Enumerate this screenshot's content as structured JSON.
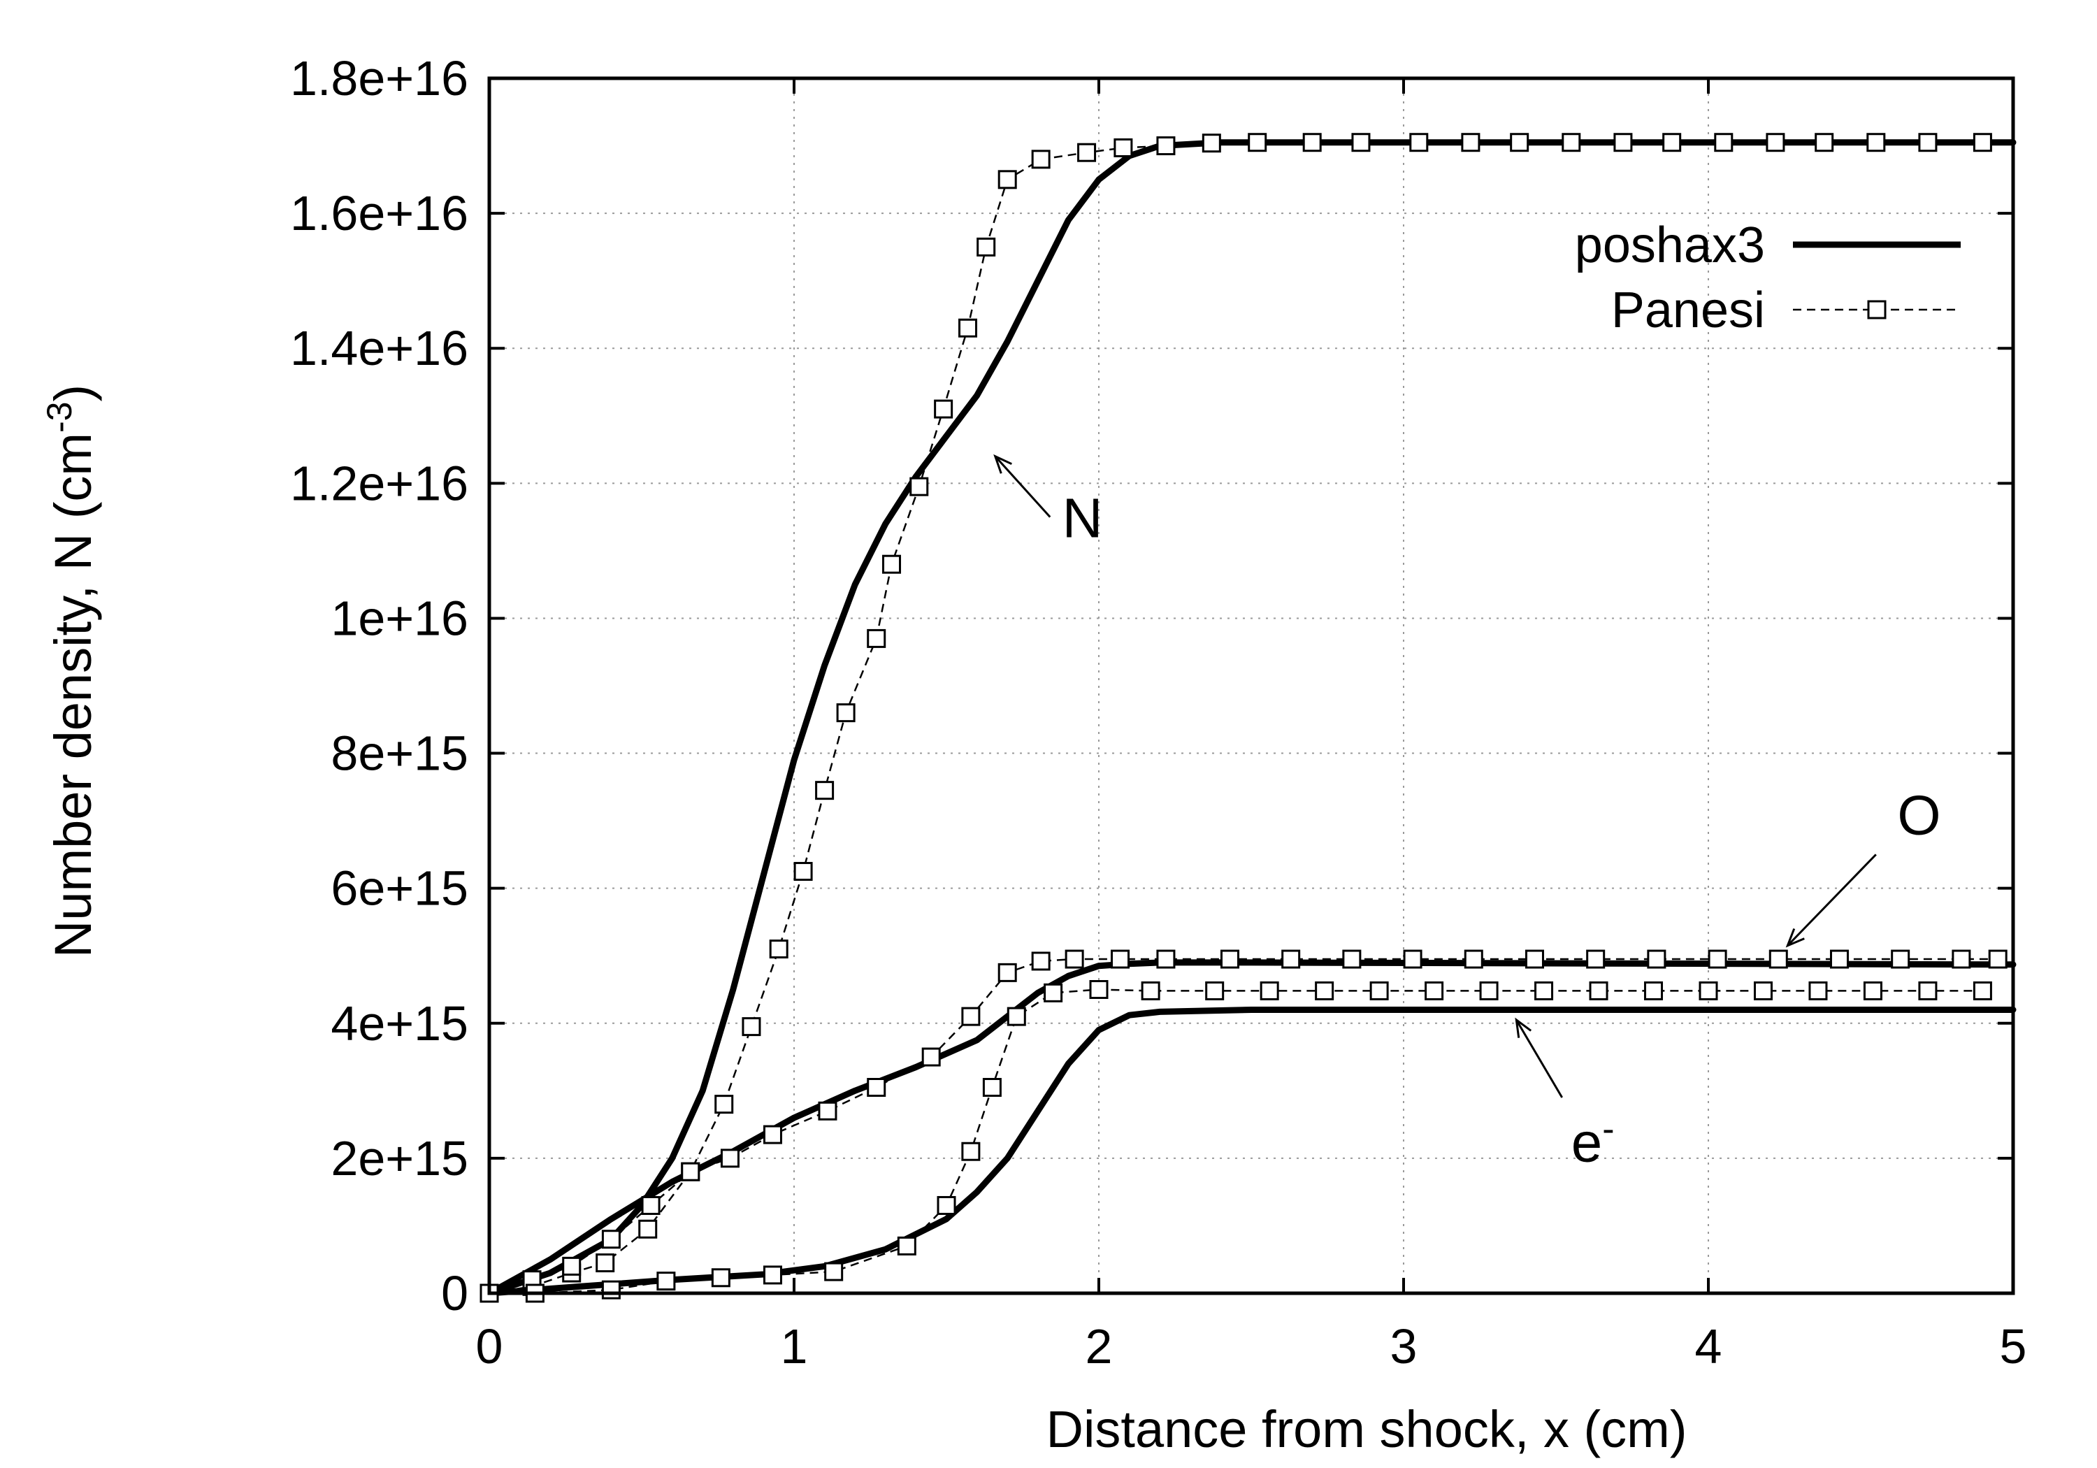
{
  "chart_data": {
    "type": "line",
    "xlabel": "Distance from shock, x (cm)",
    "ylabel": {
      "main": "Number density, N (cm",
      "sup": "-3",
      "close": ")"
    },
    "xlim": [
      0,
      5
    ],
    "ylim": [
      0,
      1.8e+16
    ],
    "xticks": [
      0,
      1,
      2,
      3,
      4,
      5
    ],
    "xtick_labels": [
      "0",
      "1",
      "2",
      "3",
      "4",
      "5"
    ],
    "yticks": [
      0,
      2000000000000000.0,
      4000000000000000.0,
      6000000000000000.0,
      8000000000000000.0,
      1e+16,
      1.2e+16,
      1.4e+16,
      1.6e+16,
      1.8e+16
    ],
    "ytick_labels": [
      "0",
      "2e+15",
      "4e+15",
      "6e+15",
      "8e+15",
      "1e+16",
      "1.2e+16",
      "1.4e+16",
      "1.6e+16",
      "1.8e+16"
    ],
    "grid": true,
    "legend": {
      "position": "top-right",
      "entries": [
        {
          "label": "poshax3",
          "style": "solid"
        },
        {
          "label": "Panesi",
          "style": "dashed-squares"
        }
      ]
    },
    "annotations": [
      {
        "text": "N",
        "sup": "",
        "tip": [
          1.66,
          1.24e+16
        ],
        "tail": [
          1.84,
          1.15e+16
        ],
        "label_at": [
          1.88,
          1.12e+16
        ]
      },
      {
        "text": "O",
        "sup": "",
        "tip": [
          4.26,
          5150000000000000.0
        ],
        "tail": [
          4.55,
          6500000000000000.0
        ],
        "label_at": [
          4.62,
          6800000000000000.0
        ]
      },
      {
        "text": "e",
        "sup": "-",
        "tip": [
          3.37,
          4050000000000000.0
        ],
        "tail": [
          3.52,
          2900000000000000.0
        ],
        "label_at": [
          3.55,
          1950000000000000.0
        ]
      }
    ],
    "series": [
      {
        "name": "N (poshax3)",
        "source": "poshax3",
        "species": "N",
        "style": "solid",
        "x": [
          0,
          0.2,
          0.4,
          0.5,
          0.6,
          0.7,
          0.8,
          0.9,
          1.0,
          1.1,
          1.2,
          1.3,
          1.4,
          1.5,
          1.6,
          1.7,
          1.8,
          1.9,
          2.0,
          2.1,
          2.2,
          2.4,
          3.0,
          5.0
        ],
        "y": [
          0,
          300000000000000.0,
          800000000000000.0,
          1300000000000000.0,
          2000000000000000.0,
          3000000000000000.0,
          4500000000000000.0,
          6200000000000000.0,
          7900000000000000.0,
          9300000000000000.0,
          1.05e+16,
          1.14e+16,
          1.21e+16,
          1.27e+16,
          1.33e+16,
          1.41e+16,
          1.5e+16,
          1.59e+16,
          1.65e+16,
          1.685e+16,
          1.7e+16,
          1.705e+16,
          1.705e+16,
          1.705e+16
        ]
      },
      {
        "name": "N (Panesi)",
        "source": "Panesi",
        "species": "N",
        "style": "dashed-squares",
        "x": [
          0,
          0.14,
          0.27,
          0.38,
          0.52,
          0.66,
          0.77,
          0.86,
          0.95,
          1.03,
          1.1,
          1.17,
          1.27,
          1.32,
          1.41,
          1.49,
          1.57,
          1.63,
          1.7,
          1.81,
          1.96,
          2.08,
          2.22,
          2.37,
          2.52,
          2.7,
          2.86,
          3.05,
          3.22,
          3.38,
          3.55,
          3.72,
          3.88,
          4.05,
          4.22,
          4.38,
          4.55,
          4.72,
          4.9
        ],
        "y": [
          0,
          100000000000000.0,
          300000000000000.0,
          450000000000000.0,
          950000000000000.0,
          1800000000000000.0,
          2800000000000000.0,
          3950000000000000.0,
          5100000000000000.0,
          6250000000000000.0,
          7450000000000000.0,
          8600000000000000.0,
          9700000000000000.0,
          1.08e+16,
          1.195e+16,
          1.31e+16,
          1.43e+16,
          1.55e+16,
          1.65e+16,
          1.68e+16,
          1.69e+16,
          1.697e+16,
          1.7e+16,
          1.704e+16,
          1.705e+16,
          1.705e+16,
          1.705e+16,
          1.705e+16,
          1.705e+16,
          1.705e+16,
          1.705e+16,
          1.705e+16,
          1.705e+16,
          1.705e+16,
          1.705e+16,
          1.705e+16,
          1.705e+16,
          1.705e+16,
          1.705e+16
        ]
      },
      {
        "name": "O (poshax3)",
        "source": "poshax3",
        "species": "O",
        "style": "solid",
        "x": [
          0,
          0.2,
          0.4,
          0.6,
          0.8,
          1.0,
          1.2,
          1.4,
          1.6,
          1.7,
          1.8,
          1.9,
          2.0,
          2.1,
          2.2,
          2.5,
          5.0
        ],
        "y": [
          0,
          500000000000000.0,
          1100000000000000.0,
          1650000000000000.0,
          2100000000000000.0,
          2600000000000000.0,
          3000000000000000.0,
          3350000000000000.0,
          3750000000000000.0,
          4100000000000000.0,
          4450000000000000.0,
          4700000000000000.0,
          4850000000000000.0,
          4880000000000000.0,
          4900000000000000.0,
          4900000000000000.0,
          4870000000000000.0
        ]
      },
      {
        "name": "O (Panesi)",
        "source": "Panesi",
        "species": "O",
        "style": "dashed-squares",
        "x": [
          0,
          0.14,
          0.27,
          0.4,
          0.53,
          0.66,
          0.79,
          0.93,
          1.11,
          1.27,
          1.45,
          1.58,
          1.7,
          1.81,
          1.92,
          2.07,
          2.22,
          2.43,
          2.63,
          2.83,
          3.03,
          3.23,
          3.43,
          3.63,
          3.83,
          4.03,
          4.23,
          4.43,
          4.63,
          4.83,
          4.95
        ],
        "y": [
          0,
          200000000000000.0,
          400000000000000.0,
          800000000000000.0,
          1300000000000000.0,
          1800000000000000.0,
          2000000000000000.0,
          2350000000000000.0,
          2700000000000000.0,
          3050000000000000.0,
          3500000000000000.0,
          4100000000000000.0,
          4750000000000000.0,
          4920000000000000.0,
          4950000000000000.0,
          4950000000000000.0,
          4950000000000000.0,
          4950000000000000.0,
          4950000000000000.0,
          4950000000000000.0,
          4950000000000000.0,
          4950000000000000.0,
          4950000000000000.0,
          4950000000000000.0,
          4950000000000000.0,
          4950000000000000.0,
          4950000000000000.0,
          4950000000000000.0,
          4950000000000000.0,
          4950000000000000.0,
          4950000000000000.0
        ]
      },
      {
        "name": "e- (poshax3)",
        "source": "poshax3",
        "species": "e-",
        "style": "solid",
        "x": [
          0,
          0.3,
          0.6,
          0.9,
          1.1,
          1.3,
          1.5,
          1.6,
          1.7,
          1.8,
          1.9,
          2.0,
          2.1,
          2.2,
          2.5,
          5.0
        ],
        "y": [
          0,
          100000000000000.0,
          200000000000000.0,
          280000000000000.0,
          400000000000000.0,
          650000000000000.0,
          1100000000000000.0,
          1500000000000000.0,
          2000000000000000.0,
          2700000000000000.0,
          3400000000000000.0,
          3900000000000000.0,
          4120000000000000.0,
          4170000000000000.0,
          4200000000000000.0,
          4200000000000000.0
        ]
      },
      {
        "name": "e- (Panesi)",
        "source": "Panesi",
        "species": "e-",
        "style": "dashed-squares",
        "x": [
          0,
          0.15,
          0.4,
          0.58,
          0.76,
          0.93,
          1.13,
          1.37,
          1.5,
          1.58,
          1.65,
          1.73,
          1.85,
          2.0,
          2.17,
          2.38,
          2.56,
          2.74,
          2.92,
          3.1,
          3.28,
          3.46,
          3.64,
          3.82,
          4.0,
          4.18,
          4.36,
          4.54,
          4.72,
          4.9
        ],
        "y": [
          0,
          0,
          50000000000000.0,
          180000000000000.0,
          230000000000000.0,
          270000000000000.0,
          320000000000000.0,
          700000000000000.0,
          1300000000000000.0,
          2100000000000000.0,
          3050000000000000.0,
          4100000000000000.0,
          4450000000000000.0,
          4500000000000000.0,
          4480000000000000.0,
          4480000000000000.0,
          4480000000000000.0,
          4480000000000000.0,
          4480000000000000.0,
          4480000000000000.0,
          4480000000000000.0,
          4480000000000000.0,
          4480000000000000.0,
          4480000000000000.0,
          4480000000000000.0,
          4480000000000000.0,
          4480000000000000.0,
          4480000000000000.0,
          4480000000000000.0,
          4480000000000000.0
        ]
      }
    ]
  }
}
